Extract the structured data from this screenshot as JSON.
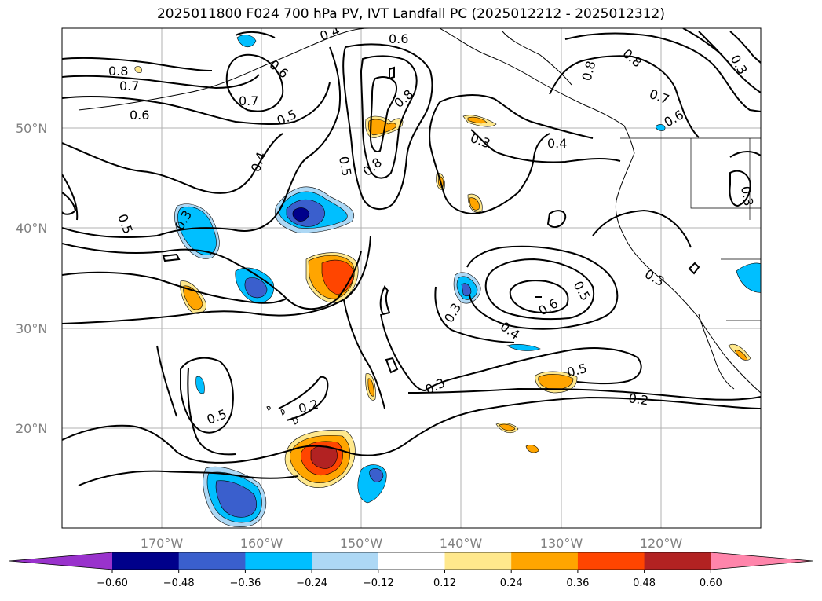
{
  "title": "2025011800 F024 700 hPa PV, IVT Landfall PC (2025012212 - 2025012312)",
  "lat_labels": [
    "50°N",
    "40°N",
    "30°N",
    "20°N"
  ],
  "lon_labels": [
    "170°W",
    "160°W",
    "150°W",
    "140°W",
    "130°W",
    "120°W"
  ],
  "contour_labels": [
    "0.8",
    "0.7",
    "0.6",
    "0.7",
    "0.6",
    "0.5",
    "0.4",
    "0.4",
    "0.6",
    "0.8",
    "0.5",
    "0.8",
    "0.3",
    "0.4",
    "0.8",
    "0.8",
    "0.7",
    "0.6",
    "0.3",
    "0.5",
    "0.3",
    "0.3",
    "0.5",
    "0.6",
    "0.4",
    "0.3",
    "0.5",
    "0.3",
    "0.2",
    "0.5",
    "0.2",
    "0.3"
  ],
  "colorbar": {
    "ticks": [
      "−0.60",
      "−0.48",
      "−0.36",
      "−0.24",
      "−0.12",
      "0.12",
      "0.24",
      "0.36",
      "0.48",
      "0.60"
    ],
    "colors": [
      "#9932cc",
      "#00008b",
      "#3a5fcd",
      "#00bfff",
      "#add8f5",
      "#ffffff",
      "#ffe88c",
      "#ffa500",
      "#ff4500",
      "#b22222",
      "#ff85ab"
    ]
  },
  "shading_colors": {
    "light_blue": "#add8f5",
    "blue": "#00bfff",
    "royal": "#3a5fcd",
    "navy": "#00008b",
    "yellow": "#ffe88c",
    "orange": "#ffa500",
    "red_orange": "#ff4500",
    "dark_red": "#b22222"
  }
}
